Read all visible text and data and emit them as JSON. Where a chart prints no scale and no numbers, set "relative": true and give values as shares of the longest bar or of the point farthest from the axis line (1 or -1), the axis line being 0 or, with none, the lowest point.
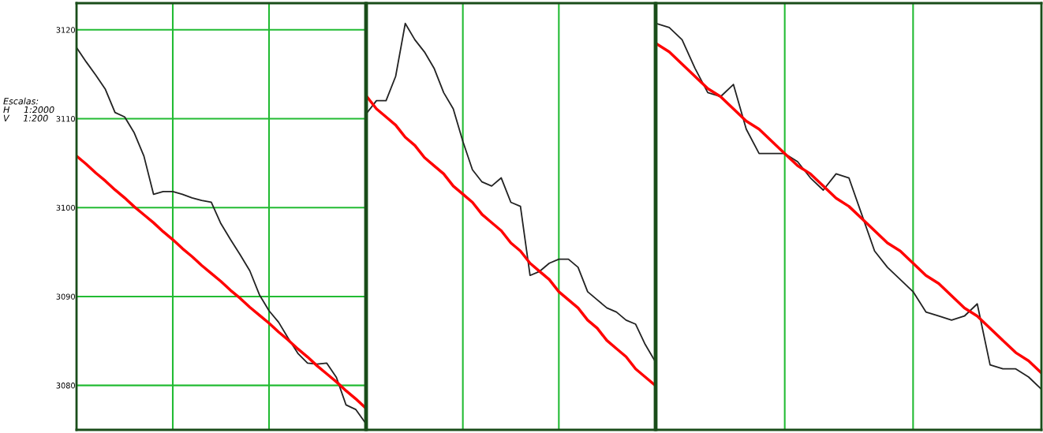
{
  "chart_data": [
    {
      "type": "line",
      "categories": [
        null,
        null,
        null,
        null,
        null,
        null,
        null,
        null,
        null,
        null,
        null,
        null,
        null,
        null,
        null,
        null,
        null,
        null,
        null,
        null,
        null,
        null,
        null,
        null,
        null,
        null,
        null,
        null,
        null,
        null,
        null
      ],
      "series": [
        {
          "color": "#222222",
          "values": [
            3118.0,
            3116.4,
            3114.9,
            3113.3,
            3110.7,
            3110.2,
            3108.4,
            3105.8,
            3101.5,
            3101.8,
            3101.8,
            3101.5,
            3101.1,
            3100.8,
            3100.6,
            3098.2,
            3096.4,
            3094.7,
            3092.9,
            3090.2,
            3088.4,
            3087.1,
            3085.3,
            3083.6,
            3082.5,
            3082.4,
            3082.5,
            3080.9,
            3077.8,
            3077.3,
            3075.8
          ]
        },
        {
          "color": "#ff0000",
          "values": [
            3105.8,
            3104.9,
            3103.9,
            3103.0,
            3102.0,
            3101.1,
            3100.1,
            3099.2,
            3098.3,
            3097.3,
            3096.4,
            3095.4,
            3094.5,
            3093.5,
            3092.6,
            3091.7,
            3090.7,
            3089.8,
            3088.8,
            3087.9,
            3087.0,
            3086.0,
            3085.1,
            3084.1,
            3083.2,
            3082.2,
            3081.3,
            3080.4,
            3079.4,
            3078.5,
            3077.5
          ]
        }
      ],
      "ylim": [
        3075,
        3123
      ],
      "yticks": [
        3080,
        3090,
        3100,
        3110,
        3120
      ],
      "grid": true,
      "tick_labels": "y",
      "marker": "none",
      "line_style": "solid",
      "annotations": [
        "Escalas:\nH     1:2000\nV     1:200"
      ]
    },
    {
      "type": "line",
      "relative": true,
      "categories": [
        null,
        null,
        null,
        null,
        null,
        null,
        null,
        null,
        null,
        null,
        null,
        null,
        null,
        null,
        null,
        null,
        null,
        null,
        null,
        null,
        null,
        null,
        null,
        null,
        null,
        null,
        null,
        null,
        null,
        null,
        null
      ],
      "series": [
        {
          "color": "#222222",
          "values": [
            0.78,
            0.81,
            0.81,
            0.87,
            1.0,
            0.96,
            0.93,
            0.89,
            0.83,
            0.79,
            0.71,
            0.64,
            0.61,
            0.6,
            0.62,
            0.56,
            0.55,
            0.38,
            0.39,
            0.41,
            0.42,
            0.42,
            0.4,
            0.34,
            0.32,
            0.3,
            0.29,
            0.27,
            0.26,
            0.21,
            0.17
          ]
        },
        {
          "color": "#ff0000",
          "values": [
            0.82,
            0.79,
            0.77,
            0.75,
            0.72,
            0.7,
            0.67,
            0.65,
            0.63,
            0.6,
            0.58,
            0.56,
            0.53,
            0.51,
            0.49,
            0.46,
            0.44,
            0.41,
            0.39,
            0.37,
            0.34,
            0.32,
            0.3,
            0.27,
            0.25,
            0.22,
            0.2,
            0.18,
            0.15,
            0.13,
            0.11
          ]
        }
      ],
      "grid": "x",
      "tick_labels": false,
      "marker": "none",
      "line_style": "solid"
    },
    {
      "type": "line",
      "relative": true,
      "categories": [
        null,
        null,
        null,
        null,
        null,
        null,
        null,
        null,
        null,
        null,
        null,
        null,
        null,
        null,
        null,
        null,
        null,
        null,
        null,
        null,
        null,
        null,
        null,
        null,
        null,
        null,
        null,
        null,
        null,
        null,
        null
      ],
      "series": [
        {
          "color": "#222222",
          "values": [
            1.0,
            0.99,
            0.96,
            0.89,
            0.83,
            0.82,
            0.85,
            0.74,
            0.68,
            0.68,
            0.68,
            0.66,
            0.62,
            0.59,
            0.63,
            0.62,
            0.53,
            0.44,
            0.4,
            0.37,
            0.34,
            0.29,
            0.28,
            0.27,
            0.28,
            0.31,
            0.16,
            0.15,
            0.15,
            0.13,
            0.1
          ]
        },
        {
          "color": "#ff0000",
          "values": [
            0.95,
            0.93,
            0.9,
            0.87,
            0.84,
            0.82,
            0.79,
            0.76,
            0.74,
            0.71,
            0.68,
            0.65,
            0.63,
            0.6,
            0.57,
            0.55,
            0.52,
            0.49,
            0.46,
            0.44,
            0.41,
            0.38,
            0.36,
            0.33,
            0.3,
            0.28,
            0.25,
            0.22,
            0.19,
            0.17,
            0.14
          ]
        }
      ],
      "grid": "x",
      "tick_labels": false,
      "marker": "none",
      "line_style": "solid"
    }
  ]
}
